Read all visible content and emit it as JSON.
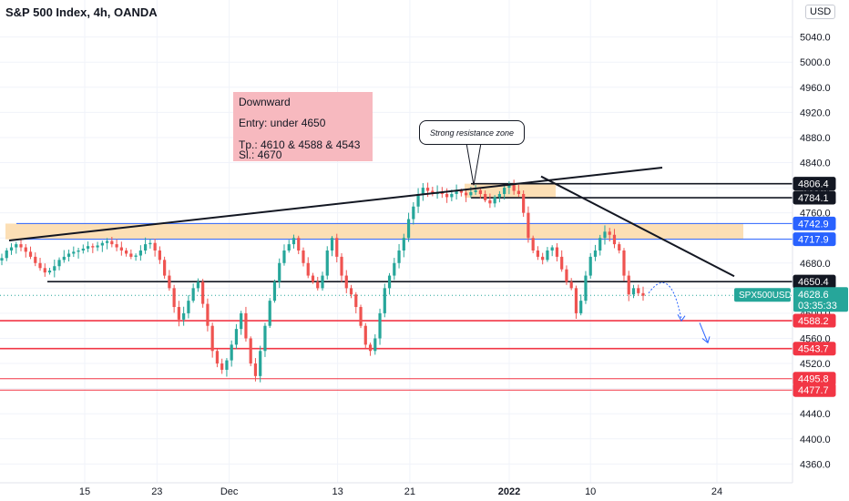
{
  "header": {
    "title": "S&P 500 Index, 4h, OANDA",
    "currency": "USD"
  },
  "note": {
    "line1": "Downward",
    "line2": "Entry: under 4650",
    "line3": "Tp.: 4610 & 4588 & 4543",
    "line4": "Sl.: 4670"
  },
  "callout": {
    "text": "Strong resistance zone"
  },
  "colors": {
    "up": "#26a69a",
    "down": "#ef5350",
    "accent": "#2962ff",
    "support": "#f23645",
    "zone": "#fbd9a8"
  },
  "chart_data": {
    "type": "candlestick",
    "symbol": "SPX500USD",
    "interval": "4h",
    "ylim": [
      4330,
      5070
    ],
    "y_ticks": [
      5040,
      5000,
      4960,
      4920,
      4880,
      4840,
      4800,
      4760,
      4720,
      4680,
      4640,
      4600,
      4560,
      4520,
      4480,
      4440,
      4400,
      4360
    ],
    "x_ticks": [
      {
        "label": "15",
        "date": "2021-11-15"
      },
      {
        "label": "23",
        "date": "2021-11-23"
      },
      {
        "label": "Dec",
        "date": "2021-12-01"
      },
      {
        "label": "13",
        "date": "2021-12-13"
      },
      {
        "label": "21",
        "date": "2021-12-21"
      },
      {
        "label": "2022",
        "date": "2022-01-01"
      },
      {
        "label": "10",
        "date": "2022-01-10"
      },
      {
        "label": "24",
        "date": "2022-01-24"
      }
    ],
    "close_path": [
      4688,
      4700,
      4705,
      4710,
      4705,
      4698,
      4690,
      4680,
      4672,
      4665,
      4668,
      4675,
      4685,
      4690,
      4695,
      4698,
      4700,
      4703,
      4707,
      4705,
      4708,
      4712,
      4715,
      4710,
      4705,
      4700,
      4695,
      4690,
      4692,
      4700,
      4710,
      4712,
      4700,
      4685,
      4660,
      4640,
      4610,
      4590,
      4600,
      4620,
      4640,
      4650,
      4615,
      4580,
      4540,
      4520,
      4510,
      4525,
      4550,
      4575,
      4600,
      4560,
      4520,
      4500,
      4540,
      4580,
      4620,
      4650,
      4680,
      4700,
      4710,
      4720,
      4700,
      4680,
      4660,
      4650,
      4640,
      4660,
      4700,
      4720,
      4690,
      4660,
      4640,
      4630,
      4610,
      4580,
      4550,
      4540,
      4560,
      4600,
      4640,
      4660,
      4680,
      4700,
      4720,
      4750,
      4770,
      4790,
      4800,
      4795,
      4790,
      4793,
      4790,
      4785,
      4790,
      4795,
      4792,
      4788,
      4793,
      4796,
      4790,
      4780,
      4775,
      4785,
      4790,
      4800,
      4805,
      4795,
      4790,
      4760,
      4720,
      4700,
      4690,
      4685,
      4700,
      4705,
      4690,
      4670,
      4650,
      4640,
      4600,
      4620,
      4660,
      4690,
      4700,
      4720,
      4730,
      4725,
      4710,
      4700,
      4660,
      4630,
      4640,
      4632,
      4628
    ],
    "horizontal_levels": [
      {
        "price": 4806.4,
        "label": "4806.4",
        "style": "black"
      },
      {
        "price": 4784.1,
        "label": "4784.1",
        "style": "black"
      },
      {
        "price": 4742.9,
        "label": "4742.9",
        "style": "blue"
      },
      {
        "price": 4717.9,
        "label": "4717.9",
        "style": "blue"
      },
      {
        "price": 4650.4,
        "label": "4650.4",
        "style": "black"
      },
      {
        "price": 4588.2,
        "label": "4588.2",
        "style": "red"
      },
      {
        "price": 4543.7,
        "label": "4543.7",
        "style": "red"
      },
      {
        "price": 4495.8,
        "label": "4495.8",
        "style": "red-thin"
      },
      {
        "price": 4477.7,
        "label": "4477.7",
        "style": "red-thin"
      }
    ],
    "current": {
      "price": 4628.6,
      "label": "4628.6",
      "timer": "03:35:33",
      "symbol": "SPX500USD"
    }
  }
}
